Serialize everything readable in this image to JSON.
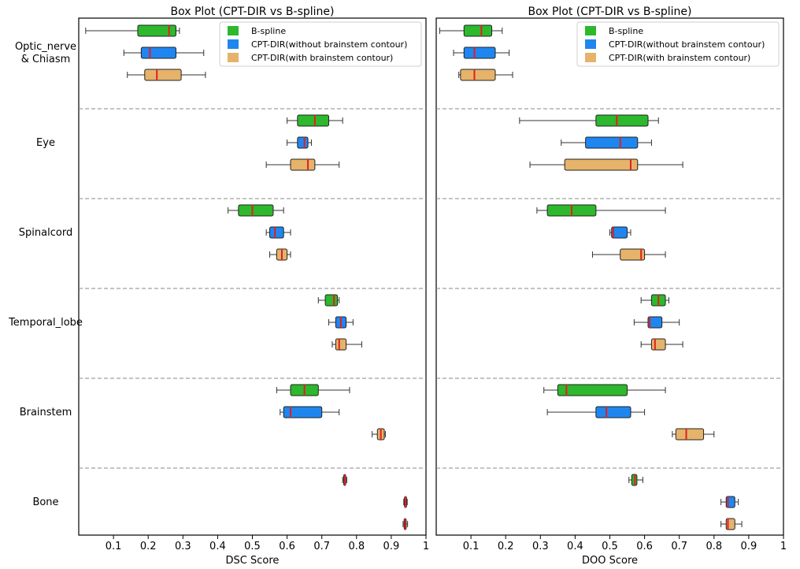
{
  "colors": {
    "bspline": "#2db82d",
    "without_brainstem": "#1f86f0",
    "with_brainstem": "#e6b36b",
    "median": "#e01f1f",
    "separator": "#888888"
  },
  "chart_data": [
    {
      "type": "box",
      "title": "Box Plot (CPT-DIR vs B-spline)",
      "xlabel": "DSC Score",
      "xlim": [
        0.0,
        1.0
      ],
      "xticks": [
        0.1,
        0.2,
        0.3,
        0.4,
        0.5,
        0.6,
        0.7,
        0.8,
        0.9,
        1.0
      ],
      "grid": false,
      "legend_position": "top-right",
      "categories": [
        "Optic_nerve\n& Chiasm",
        "Eye",
        "Spinalcord",
        "Temporal_lobe",
        "Brainstem",
        "Bone"
      ],
      "series": [
        {
          "name": "B-spline",
          "color_key": "bspline",
          "boxes": [
            {
              "min": 0.02,
              "q1": 0.17,
              "median": 0.26,
              "q3": 0.28,
              "max": 0.29
            },
            {
              "min": 0.6,
              "q1": 0.63,
              "median": 0.68,
              "q3": 0.72,
              "max": 0.76
            },
            {
              "min": 0.43,
              "q1": 0.46,
              "median": 0.5,
              "q3": 0.56,
              "max": 0.59
            },
            {
              "min": 0.69,
              "q1": 0.71,
              "median": 0.735,
              "q3": 0.745,
              "max": 0.75
            },
            {
              "min": 0.57,
              "q1": 0.61,
              "median": 0.65,
              "q3": 0.69,
              "max": 0.78
            },
            {
              "min": 0.76,
              "q1": 0.763,
              "median": 0.766,
              "q3": 0.769,
              "max": 0.772
            }
          ]
        },
        {
          "name": "CPT-DIR(without brainstem contour)",
          "color_key": "without_brainstem",
          "boxes": [
            {
              "min": 0.13,
              "q1": 0.18,
              "median": 0.205,
              "q3": 0.28,
              "max": 0.36
            },
            {
              "min": 0.6,
              "q1": 0.63,
              "median": 0.65,
              "q3": 0.66,
              "max": 0.67
            },
            {
              "min": 0.54,
              "q1": 0.55,
              "median": 0.565,
              "q3": 0.59,
              "max": 0.61
            },
            {
              "min": 0.72,
              "q1": 0.74,
              "median": 0.755,
              "q3": 0.77,
              "max": 0.79
            },
            {
              "min": 0.58,
              "q1": 0.59,
              "median": 0.61,
              "q3": 0.7,
              "max": 0.75
            },
            {
              "min": 0.936,
              "q1": 0.938,
              "median": 0.941,
              "q3": 0.944,
              "max": 0.946
            }
          ]
        },
        {
          "name": "CPT-DIR(with brainstem contour)",
          "color_key": "with_brainstem",
          "boxes": [
            {
              "min": 0.14,
              "q1": 0.19,
              "median": 0.225,
              "q3": 0.295,
              "max": 0.365
            },
            {
              "min": 0.54,
              "q1": 0.61,
              "median": 0.66,
              "q3": 0.68,
              "max": 0.75
            },
            {
              "min": 0.55,
              "q1": 0.57,
              "median": 0.585,
              "q3": 0.6,
              "max": 0.61
            },
            {
              "min": 0.73,
              "q1": 0.74,
              "median": 0.75,
              "q3": 0.77,
              "max": 0.815
            },
            {
              "min": 0.845,
              "q1": 0.86,
              "median": 0.87,
              "q3": 0.88,
              "max": 0.883
            },
            {
              "min": 0.934,
              "q1": 0.937,
              "median": 0.94,
              "q3": 0.943,
              "max": 0.947
            }
          ]
        }
      ]
    },
    {
      "type": "box",
      "title": "Box Plot (CPT-DIR vs B-spline)",
      "xlabel": "DOO Score",
      "xlim": [
        0.0,
        1.0
      ],
      "xticks": [
        0.1,
        0.2,
        0.3,
        0.4,
        0.5,
        0.6,
        0.7,
        0.8,
        0.9,
        1.0
      ],
      "grid": false,
      "legend_position": "top-right",
      "categories": [
        "Optic_nerve\n& Chiasm",
        "Eye",
        "Spinalcord",
        "Temporal_lobe",
        "Brainstem",
        "Bone"
      ],
      "series": [
        {
          "name": "B-spline",
          "color_key": "bspline",
          "boxes": [
            {
              "min": 0.01,
              "q1": 0.08,
              "median": 0.13,
              "q3": 0.16,
              "max": 0.19
            },
            {
              "min": 0.24,
              "q1": 0.46,
              "median": 0.52,
              "q3": 0.61,
              "max": 0.64
            },
            {
              "min": 0.29,
              "q1": 0.32,
              "median": 0.39,
              "q3": 0.46,
              "max": 0.66
            },
            {
              "min": 0.59,
              "q1": 0.62,
              "median": 0.64,
              "q3": 0.66,
              "max": 0.67
            },
            {
              "min": 0.31,
              "q1": 0.35,
              "median": 0.375,
              "q3": 0.55,
              "max": 0.66
            },
            {
              "min": 0.555,
              "q1": 0.563,
              "median": 0.572,
              "q3": 0.578,
              "max": 0.595
            }
          ]
        },
        {
          "name": "CPT-DIR(without brainstem contour)",
          "color_key": "without_brainstem",
          "boxes": [
            {
              "min": 0.05,
              "q1": 0.08,
              "median": 0.11,
              "q3": 0.17,
              "max": 0.21
            },
            {
              "min": 0.36,
              "q1": 0.43,
              "median": 0.53,
              "q3": 0.58,
              "max": 0.62
            },
            {
              "min": 0.5,
              "q1": 0.505,
              "median": 0.51,
              "q3": 0.55,
              "max": 0.56
            },
            {
              "min": 0.57,
              "q1": 0.61,
              "median": 0.615,
              "q3": 0.65,
              "max": 0.7
            },
            {
              "min": 0.32,
              "q1": 0.46,
              "median": 0.49,
              "q3": 0.56,
              "max": 0.6
            },
            {
              "min": 0.82,
              "q1": 0.835,
              "median": 0.84,
              "q3": 0.86,
              "max": 0.87
            }
          ]
        },
        {
          "name": "CPT-DIR(with brainstem contour)",
          "color_key": "with_brainstem",
          "boxes": [
            {
              "min": 0.065,
              "q1": 0.07,
              "median": 0.11,
              "q3": 0.17,
              "max": 0.22
            },
            {
              "min": 0.27,
              "q1": 0.37,
              "median": 0.56,
              "q3": 0.58,
              "max": 0.71
            },
            {
              "min": 0.45,
              "q1": 0.53,
              "median": 0.59,
              "q3": 0.6,
              "max": 0.66
            },
            {
              "min": 0.59,
              "q1": 0.62,
              "median": 0.63,
              "q3": 0.66,
              "max": 0.71
            },
            {
              "min": 0.68,
              "q1": 0.69,
              "median": 0.72,
              "q3": 0.77,
              "max": 0.8
            },
            {
              "min": 0.82,
              "q1": 0.835,
              "median": 0.84,
              "q3": 0.86,
              "max": 0.88
            }
          ]
        }
      ]
    }
  ]
}
